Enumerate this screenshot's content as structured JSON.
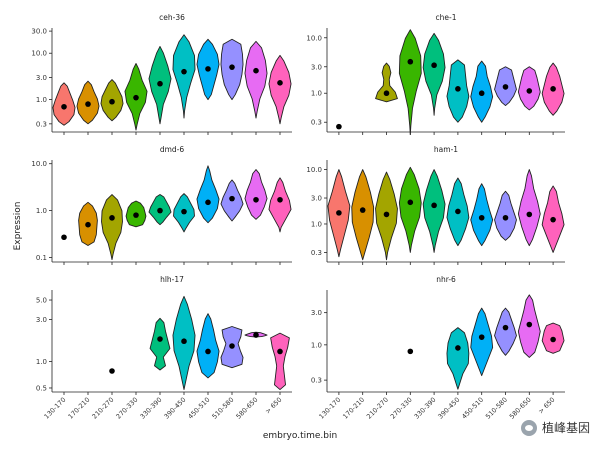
{
  "chart_data": {
    "type": "violin",
    "xlabel": "embryo.time.bin",
    "ylabel": "Expression",
    "categories": [
      "130-170",
      "170-210",
      "210-270",
      "270-330",
      "330-390",
      "390-450",
      "450-510",
      "510-580",
      "580-650",
      "> 650"
    ],
    "colors": [
      "#F8766D",
      "#D89000",
      "#A3A500",
      "#39B600",
      "#00BF7D",
      "#00BFC4",
      "#00B0F6",
      "#9590FF",
      "#E76BF3",
      "#FF62BC"
    ],
    "y_scale": "log10",
    "panels": [
      {
        "title": "ceh-36",
        "ylim": [
          0.2,
          35
        ],
        "yticks": [
          0.3,
          1.0,
          3.0,
          10.0,
          30.0
        ],
        "ytick_labels": [
          "0.3",
          "1.0",
          "3.0",
          "10.0",
          "30.0"
        ],
        "violins": [
          {
            "category": "130-170",
            "median": 0.7,
            "min": 0.28,
            "max": 2.3,
            "shape": [
              0.45,
              0.9,
              1.0,
              0.8,
              0.55,
              0.3
            ]
          },
          {
            "category": "170-210",
            "median": 0.8,
            "min": 0.3,
            "max": 2.5,
            "shape": [
              0.4,
              0.85,
              1.0,
              0.85,
              0.55,
              0.3
            ]
          },
          {
            "category": "210-270",
            "median": 0.9,
            "min": 0.35,
            "max": 2.7,
            "shape": [
              0.35,
              0.8,
              1.0,
              0.9,
              0.6,
              0.3
            ]
          },
          {
            "category": "270-330",
            "median": 1.1,
            "min": 0.22,
            "max": 6.0,
            "shape": [
              0.1,
              0.35,
              0.85,
              1.0,
              0.55,
              0.25
            ]
          },
          {
            "category": "330-390",
            "median": 2.2,
            "min": 0.3,
            "max": 14.0,
            "shape": [
              0.1,
              0.3,
              0.75,
              1.0,
              0.7,
              0.3
            ]
          },
          {
            "category": "390-450",
            "median": 4.0,
            "min": 0.4,
            "max": 25.0,
            "shape": [
              0.05,
              0.25,
              0.6,
              1.0,
              0.95,
              0.45
            ]
          },
          {
            "category": "450-510",
            "median": 4.6,
            "min": 1.0,
            "max": 20.0,
            "shape": [
              0.3,
              0.55,
              0.8,
              1.0,
              0.85,
              0.4
            ]
          },
          {
            "category": "510-580",
            "median": 5.0,
            "min": 1.0,
            "max": 20.0,
            "shape": [
              0.3,
              0.7,
              0.9,
              1.0,
              0.95,
              0.8
            ]
          },
          {
            "category": "580-650",
            "median": 4.2,
            "min": 0.4,
            "max": 18.0,
            "shape": [
              0.1,
              0.35,
              0.8,
              1.0,
              0.85,
              0.5
            ]
          },
          {
            "category": "> 650",
            "median": 2.3,
            "min": 0.3,
            "max": 9.0,
            "shape": [
              0.1,
              0.35,
              0.8,
              1.0,
              0.8,
              0.35
            ]
          }
        ]
      },
      {
        "title": "che-1",
        "ylim": [
          0.2,
          15
        ],
        "yticks": [
          0.3,
          1.0,
          3.0,
          10.0
        ],
        "ytick_labels": [
          "0.3",
          "1.0",
          "3.0",
          "10.0"
        ],
        "violins": [
          {
            "category": "130-170",
            "median": 0.25,
            "min": 0.25,
            "max": 0.25,
            "shape": []
          },
          {
            "category": "210-270",
            "median": 1.0,
            "min": 0.7,
            "max": 3.5,
            "shape": [
              1.0,
              0.8,
              0.3,
              0.25,
              0.4,
              0.25
            ]
          },
          {
            "category": "270-330",
            "median": 3.7,
            "min": 0.18,
            "max": 14.0,
            "shape": [
              0.05,
              0.2,
              0.55,
              1.0,
              0.95,
              0.45
            ]
          },
          {
            "category": "330-390",
            "median": 3.2,
            "min": 0.4,
            "max": 12.0,
            "shape": [
              0.05,
              0.25,
              0.75,
              1.0,
              0.85,
              0.4
            ]
          },
          {
            "category": "390-450",
            "median": 1.2,
            "min": 0.3,
            "max": 4.0,
            "shape": [
              0.4,
              0.8,
              1.0,
              0.8,
              0.7,
              0.6
            ]
          },
          {
            "category": "450-510",
            "median": 1.0,
            "min": 0.3,
            "max": 3.8,
            "shape": [
              0.3,
              0.75,
              1.0,
              0.8,
              0.5,
              0.35
            ]
          },
          {
            "category": "510-580",
            "median": 1.3,
            "min": 0.6,
            "max": 3.0,
            "shape": [
              0.35,
              0.75,
              1.0,
              0.85,
              0.7,
              0.55
            ]
          },
          {
            "category": "580-650",
            "median": 1.1,
            "min": 0.5,
            "max": 3.0,
            "shape": [
              0.4,
              0.8,
              1.0,
              0.85,
              0.7,
              0.5
            ]
          },
          {
            "category": "> 650",
            "median": 1.2,
            "min": 0.4,
            "max": 3.5,
            "shape": [
              0.35,
              0.8,
              1.0,
              0.8,
              0.6,
              0.3
            ]
          }
        ]
      },
      {
        "title": "dmd-6",
        "ylim": [
          0.08,
          12
        ],
        "yticks": [
          0.1,
          1.0,
          10.0
        ],
        "ytick_labels": [
          "0.1",
          "1.0",
          "10.0"
        ],
        "violins": [
          {
            "category": "130-170",
            "median": 0.27,
            "min": 0.27,
            "max": 0.27,
            "shape": []
          },
          {
            "category": "170-210",
            "median": 0.5,
            "min": 0.18,
            "max": 1.5,
            "shape": [
              0.55,
              0.75,
              0.8,
              0.85,
              0.75,
              0.4
            ]
          },
          {
            "category": "210-270",
            "median": 0.7,
            "min": 0.09,
            "max": 2.2,
            "shape": [
              0.1,
              0.35,
              0.8,
              0.95,
              0.9,
              0.5
            ]
          },
          {
            "category": "270-330",
            "median": 0.8,
            "min": 0.45,
            "max": 1.6,
            "shape": [
              0.6,
              0.8,
              0.9,
              0.8,
              0.7,
              0.4
            ]
          },
          {
            "category": "330-390",
            "median": 1.0,
            "min": 0.5,
            "max": 2.2,
            "shape": [
              0.25,
              0.6,
              1.0,
              0.85,
              0.6,
              0.35
            ]
          },
          {
            "category": "390-450",
            "median": 0.95,
            "min": 0.35,
            "max": 2.3,
            "shape": [
              0.15,
              0.5,
              0.95,
              0.9,
              0.6,
              0.3
            ]
          },
          {
            "category": "450-510",
            "median": 1.5,
            "min": 0.55,
            "max": 9.0,
            "shape": [
              0.4,
              0.85,
              1.0,
              0.7,
              0.35,
              0.15
            ]
          },
          {
            "category": "510-580",
            "median": 1.8,
            "min": 0.6,
            "max": 4.5,
            "shape": [
              0.25,
              0.7,
              1.0,
              0.8,
              0.5,
              0.25
            ]
          },
          {
            "category": "580-650",
            "median": 1.7,
            "min": 0.65,
            "max": 7.5,
            "shape": [
              0.4,
              0.75,
              1.0,
              0.8,
              0.5,
              0.3
            ]
          },
          {
            "category": "> 650",
            "median": 1.7,
            "min": 0.35,
            "max": 5.0,
            "shape": [
              0.1,
              0.55,
              1.0,
              0.85,
              0.5,
              0.25
            ]
          }
        ]
      },
      {
        "title": "ham-1",
        "ylim": [
          0.2,
          15
        ],
        "yticks": [
          0.3,
          1.0,
          3.0,
          10.0
        ],
        "ytick_labels": [
          "0.3",
          "1.0",
          "3.0",
          "10.0"
        ],
        "violins": [
          {
            "category": "130-170",
            "median": 1.6,
            "min": 0.25,
            "max": 10.0,
            "shape": [
              0.15,
              0.5,
              0.85,
              1.0,
              0.6,
              0.25
            ]
          },
          {
            "category": "170-210",
            "median": 1.8,
            "min": 0.22,
            "max": 10.0,
            "shape": [
              0.2,
              0.6,
              0.95,
              1.0,
              0.7,
              0.3
            ]
          },
          {
            "category": "210-270",
            "median": 1.5,
            "min": 0.22,
            "max": 9.0,
            "shape": [
              0.1,
              0.45,
              0.9,
              1.0,
              0.7,
              0.3
            ]
          },
          {
            "category": "270-330",
            "median": 2.5,
            "min": 0.3,
            "max": 11.0,
            "shape": [
              0.1,
              0.4,
              0.85,
              1.0,
              0.8,
              0.35
            ]
          },
          {
            "category": "330-390",
            "median": 2.2,
            "min": 0.3,
            "max": 10.0,
            "shape": [
              0.1,
              0.4,
              0.85,
              1.0,
              0.7,
              0.3
            ]
          },
          {
            "category": "390-450",
            "median": 1.7,
            "min": 0.4,
            "max": 7.0,
            "shape": [
              0.3,
              0.7,
              1.0,
              0.85,
              0.55,
              0.3
            ]
          },
          {
            "category": "450-510",
            "median": 1.3,
            "min": 0.4,
            "max": 5.5,
            "shape": [
              0.3,
              0.75,
              1.0,
              0.7,
              0.45,
              0.25
            ]
          },
          {
            "category": "510-580",
            "median": 1.3,
            "min": 0.5,
            "max": 4.0,
            "shape": [
              0.4,
              0.8,
              1.0,
              0.75,
              0.5,
              0.3
            ]
          },
          {
            "category": "580-650",
            "median": 1.5,
            "min": 0.4,
            "max": 10.0,
            "shape": [
              0.3,
              0.7,
              1.0,
              0.75,
              0.4,
              0.2
            ]
          },
          {
            "category": "> 650",
            "median": 1.2,
            "min": 0.3,
            "max": 5.0,
            "shape": [
              0.2,
              0.6,
              1.0,
              0.8,
              0.5,
              0.3
            ]
          }
        ]
      },
      {
        "title": "hlh-17",
        "ylim": [
          0.45,
          6.5
        ],
        "yticks": [
          0.5,
          1.0,
          3.0,
          5.0
        ],
        "ytick_labels": [
          "0.5",
          "1.0",
          "3.0",
          "5.0"
        ],
        "violins": [
          {
            "category": "210-270",
            "median": 0.78,
            "min": 0.78,
            "max": 0.78,
            "shape": []
          },
          {
            "category": "330-390",
            "median": 1.8,
            "min": 0.8,
            "max": 3.1,
            "shape": [
              0.5,
              0.3,
              0.9,
              0.7,
              0.5,
              0.35
            ]
          },
          {
            "category": "390-450",
            "median": 1.7,
            "min": 0.48,
            "max": 5.5,
            "shape": [
              0.15,
              0.45,
              0.9,
              1.0,
              0.7,
              0.3
            ]
          },
          {
            "category": "450-510",
            "median": 1.3,
            "min": 0.65,
            "max": 3.5,
            "shape": [
              0.55,
              0.85,
              1.0,
              0.7,
              0.5,
              0.25
            ]
          },
          {
            "category": "510-580",
            "median": 1.5,
            "min": 0.85,
            "max": 2.5,
            "shape": [
              0.9,
              1.0,
              0.75,
              0.55,
              0.8,
              0.9
            ]
          },
          {
            "category": "580-650",
            "median": 2.0,
            "min": 1.9,
            "max": 2.15,
            "shape": [
              0.5,
              0.8,
              1.0,
              0.8,
              0.6,
              0.4
            ]
          },
          {
            "category": "> 650",
            "median": 1.3,
            "min": 0.48,
            "max": 2.1,
            "shape": [
              0.5,
              0.4,
              0.3,
              0.45,
              0.7,
              0.85
            ]
          }
        ]
      },
      {
        "title": "nhr-6",
        "ylim": [
          0.2,
          6.5
        ],
        "yticks": [
          0.3,
          1.0,
          3.0
        ],
        "ytick_labels": [
          "0.3",
          "1.0",
          "3.0"
        ],
        "violins": [
          {
            "category": "270-330",
            "median": 0.8,
            "min": 0.8,
            "max": 0.8,
            "shape": []
          },
          {
            "category": "390-450",
            "median": 0.9,
            "min": 0.22,
            "max": 1.8,
            "shape": [
              0.15,
              0.45,
              0.95,
              1.0,
              0.9,
              0.6
            ]
          },
          {
            "category": "450-510",
            "median": 1.3,
            "min": 0.35,
            "max": 3.5,
            "shape": [
              0.2,
              0.6,
              1.0,
              0.9,
              0.6,
              0.3
            ]
          },
          {
            "category": "510-580",
            "median": 1.8,
            "min": 0.7,
            "max": 3.5,
            "shape": [
              0.3,
              0.7,
              1.0,
              0.8,
              0.55,
              0.3
            ]
          },
          {
            "category": "580-650",
            "median": 2.0,
            "min": 0.65,
            "max": 5.5,
            "shape": [
              0.5,
              0.8,
              1.0,
              0.75,
              0.5,
              0.3
            ]
          },
          {
            "category": "> 650",
            "median": 1.2,
            "min": 0.75,
            "max": 2.1,
            "shape": [
              0.6,
              0.8,
              1.0,
              0.9,
              0.8,
              0.6
            ]
          }
        ]
      }
    ]
  },
  "watermark": {
    "text": "植峰基因",
    "icon": "wechat-icon"
  }
}
